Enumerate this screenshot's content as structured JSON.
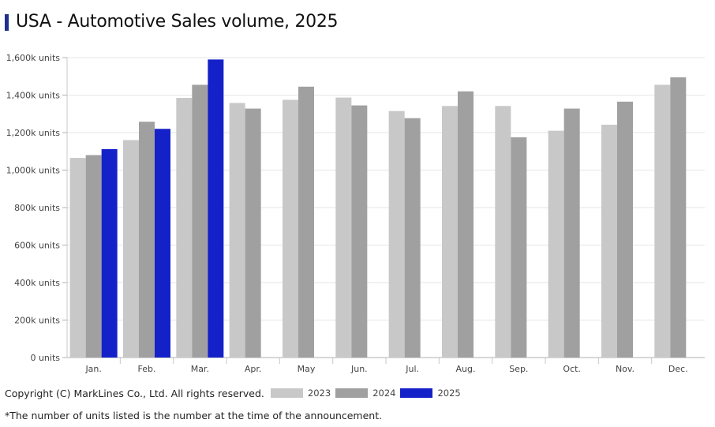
{
  "title": "USA - Automotive Sales volume, 2025",
  "copyright": "Copyright (C) MarkLines Co., Ltd. All rights reserved.",
  "note": "*The number of units listed is the number at the time of the announcement.",
  "chart_data": {
    "type": "bar",
    "title": "USA - Automotive Sales volume, 2025",
    "categories": [
      "Jan.",
      "Feb.",
      "Mar.",
      "Apr.",
      "May",
      "Jun.",
      "Jul.",
      "Aug.",
      "Sep.",
      "Oct.",
      "Nov.",
      "Dec."
    ],
    "series": [
      {
        "name": "2023",
        "color": "#c8c8c8",
        "values": [
          1065,
          1160,
          1385,
          1358,
          1375,
          1387,
          1315,
          1342,
          1342,
          1210,
          1242,
          1455
        ]
      },
      {
        "name": "2024",
        "color": "#a0a0a0",
        "values": [
          1080,
          1258,
          1455,
          1328,
          1445,
          1345,
          1277,
          1420,
          1175,
          1328,
          1365,
          1495
        ]
      },
      {
        "name": "2025",
        "color": "#1421c8",
        "values": [
          1112,
          1220,
          1590,
          null,
          null,
          null,
          null,
          null,
          null,
          null,
          null,
          null
        ]
      }
    ],
    "yticks": [
      "0 units",
      "200k units",
      "400k units",
      "600k units",
      "800k units",
      "1,000k units",
      "1,200k units",
      "1,400k units",
      "1,600k units"
    ],
    "ylim": [
      0,
      1600
    ],
    "grid": true,
    "legend_position": "bottom"
  }
}
